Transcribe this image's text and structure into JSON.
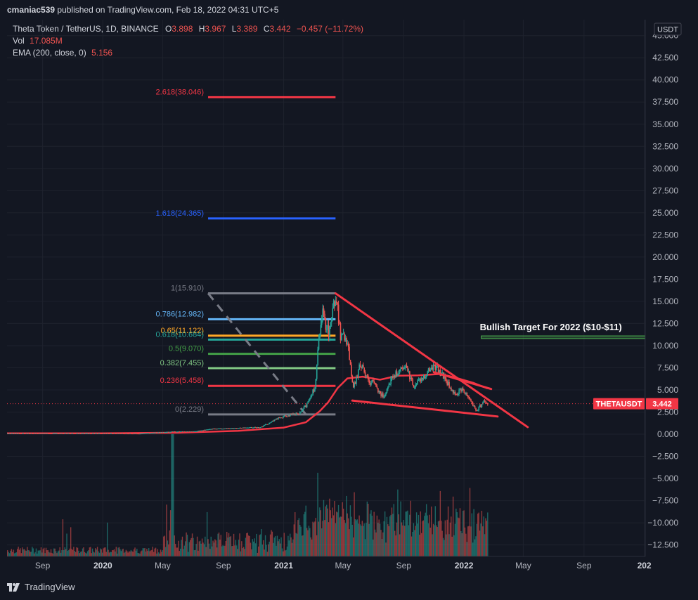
{
  "header": {
    "publisher": "cmaniac539",
    "text": "published on TradingView.com, Feb 18, 2022 04:31 UTC+5"
  },
  "legend": {
    "symbol": "Theta Token / TetherUS, 1D, BINANCE",
    "ohlc": {
      "o_label": "O",
      "o": "3.898",
      "h_label": "H",
      "h": "3.967",
      "l_label": "L",
      "l": "3.389",
      "c_label": "C",
      "c": "3.442",
      "change": "−0.457 (−11.72%)"
    },
    "vol_label": "Vol",
    "vol_value": "17.085M",
    "ema_label": "EMA (200, close, 0)",
    "ema_value": "5.156"
  },
  "colors": {
    "background": "#131722",
    "text": "#d1d4dc",
    "axis_text": "#b2b5be",
    "grid": "#1e222d",
    "up": "#26a69a",
    "down": "#ef5350",
    "trendline": "#f23645",
    "ema": "#f23645",
    "target_box": "#4caf50",
    "price_badge": "#f23645"
  },
  "footer": {
    "brand": "TradingView",
    "logo_icon": "tradingview-logo-icon"
  },
  "chart_data": {
    "type": "candlestick",
    "currency": "USDT",
    "y_ticks": [
      "45.000",
      "42.500",
      "40.000",
      "37.500",
      "35.000",
      "32.500",
      "30.000",
      "27.500",
      "25.000",
      "22.500",
      "20.000",
      "17.500",
      "15.000",
      "12.500",
      "10.000",
      "7.500",
      "5.000",
      "2.500",
      "0.000",
      "−2.500",
      "−5.000",
      "−7.500",
      "−10.000",
      "−12.500"
    ],
    "y_tick_values": [
      45,
      42.5,
      40,
      37.5,
      35,
      32.5,
      30,
      27.5,
      25,
      22.5,
      20,
      17.5,
      15,
      12.5,
      10,
      7.5,
      5,
      2.5,
      0,
      -2.5,
      -5,
      -7.5,
      -10,
      -12.5
    ],
    "ylim": [
      -13.8,
      46.8
    ],
    "x_ticks": [
      {
        "label": "Sep",
        "date": "2019-09-01"
      },
      {
        "label": "2020",
        "date": "2020-01-01"
      },
      {
        "label": "May",
        "date": "2020-05-01"
      },
      {
        "label": "Sep",
        "date": "2020-09-01"
      },
      {
        "label": "2021",
        "date": "2021-01-01"
      },
      {
        "label": "May",
        "date": "2021-05-01"
      },
      {
        "label": "Sep",
        "date": "2021-09-01"
      },
      {
        "label": "2022",
        "date": "2022-01-01"
      },
      {
        "label": "May",
        "date": "2022-05-01"
      },
      {
        "label": "Sep",
        "date": "2022-09-01"
      },
      {
        "label": "202",
        "date": "2023-01-01"
      }
    ],
    "xlim": [
      "2019-06-21",
      "2023-01-03"
    ],
    "price_series": [
      {
        "date": "2019-06-21",
        "close": 0.1
      },
      {
        "date": "2019-09-01",
        "close": 0.1
      },
      {
        "date": "2020-01-01",
        "close": 0.09
      },
      {
        "date": "2020-03-15",
        "close": 0.07
      },
      {
        "date": "2020-05-20",
        "close": 0.3
      },
      {
        "date": "2020-07-01",
        "close": 0.3
      },
      {
        "date": "2020-08-10",
        "close": 0.6
      },
      {
        "date": "2020-10-01",
        "close": 0.7
      },
      {
        "date": "2020-11-15",
        "close": 0.8
      },
      {
        "date": "2020-12-20",
        "close": 1.8
      },
      {
        "date": "2021-01-15",
        "close": 2.2
      },
      {
        "date": "2021-02-01",
        "close": 2.3
      },
      {
        "date": "2021-02-15",
        "close": 3.3
      },
      {
        "date": "2021-03-05",
        "close": 5.5
      },
      {
        "date": "2021-03-12",
        "close": 10.5
      },
      {
        "date": "2021-03-20",
        "close": 13.5
      },
      {
        "date": "2021-04-01",
        "close": 11.5
      },
      {
        "date": "2021-04-16",
        "close": 15.9
      },
      {
        "date": "2021-04-25",
        "close": 11.0
      },
      {
        "date": "2021-05-10",
        "close": 10.5
      },
      {
        "date": "2021-05-20",
        "close": 5.0
      },
      {
        "date": "2021-06-05",
        "close": 8.0
      },
      {
        "date": "2021-06-20",
        "close": 6.0
      },
      {
        "date": "2021-07-01",
        "close": 5.8
      },
      {
        "date": "2021-07-20",
        "close": 4.2
      },
      {
        "date": "2021-08-05",
        "close": 6.2
      },
      {
        "date": "2021-08-20",
        "close": 7.0
      },
      {
        "date": "2021-09-05",
        "close": 7.5
      },
      {
        "date": "2021-09-20",
        "close": 5.5
      },
      {
        "date": "2021-10-10",
        "close": 6.5
      },
      {
        "date": "2021-11-01",
        "close": 7.8
      },
      {
        "date": "2021-11-20",
        "close": 6.5
      },
      {
        "date": "2021-12-10",
        "close": 4.5
      },
      {
        "date": "2021-12-28",
        "close": 5.0
      },
      {
        "date": "2022-01-10",
        "close": 4.2
      },
      {
        "date": "2022-01-25",
        "close": 2.6
      },
      {
        "date": "2022-02-10",
        "close": 3.8
      },
      {
        "date": "2022-02-18",
        "close": 3.44
      }
    ],
    "last_price": "3.442",
    "last_price_value": 3.442,
    "symbol_badge": "THETAUSDT",
    "ema_series": [
      {
        "date": "2019-06-21",
        "value": 0.1
      },
      {
        "date": "2020-01-01",
        "value": 0.1
      },
      {
        "date": "2020-06-01",
        "value": 0.17
      },
      {
        "date": "2020-10-01",
        "value": 0.38
      },
      {
        "date": "2021-01-01",
        "value": 0.75
      },
      {
        "date": "2021-02-15",
        "value": 1.35
      },
      {
        "date": "2021-03-15",
        "value": 2.6
      },
      {
        "date": "2021-04-01",
        "value": 3.6
      },
      {
        "date": "2021-04-20",
        "value": 5.2
      },
      {
        "date": "2021-05-10",
        "value": 6.3
      },
      {
        "date": "2021-06-10",
        "value": 6.5
      },
      {
        "date": "2021-07-15",
        "value": 6.15
      },
      {
        "date": "2021-08-20",
        "value": 6.6
      },
      {
        "date": "2021-10-01",
        "value": 6.65
      },
      {
        "date": "2021-11-15",
        "value": 6.8
      },
      {
        "date": "2021-12-20",
        "value": 6.3
      },
      {
        "date": "2022-01-20",
        "value": 5.8
      },
      {
        "date": "2022-02-18",
        "value": 5.156
      }
    ],
    "fibonacci": {
      "start": "2020-08-01",
      "end": "2021-04-16",
      "levels": [
        {
          "label": "2.618(38.046)",
          "value": 38.046,
          "color": "#f23645"
        },
        {
          "label": "1.618(24.365)",
          "value": 24.365,
          "color": "#2962ff"
        },
        {
          "label": "1(15.910)",
          "value": 15.91,
          "color": "#787b86"
        },
        {
          "label": "0.786(12.982)",
          "value": 12.982,
          "color": "#64b5f6"
        },
        {
          "label": "0.65(11.122)",
          "value": 11.122,
          "color": "#ffa726"
        },
        {
          "label": "0.618(10.684)",
          "value": 10.684,
          "color": "#26a69a"
        },
        {
          "label": "0.5(9.070)",
          "value": 9.07,
          "color": "#43a047"
        },
        {
          "label": "0.382(7.455)",
          "value": 7.455,
          "color": "#81c784"
        },
        {
          "label": "0.236(5.458)",
          "value": 5.458,
          "color": "#f23645"
        },
        {
          "label": "0(2.229)",
          "value": 2.229,
          "color": "#787b86"
        }
      ],
      "diagonal": {
        "from": [
          "2020-08-01",
          15.91
        ],
        "to": [
          "2021-02-15",
          2.229
        ]
      }
    },
    "trendlines": [
      {
        "from": [
          "2021-04-16",
          15.9
        ],
        "to": [
          "2022-05-10",
          0.8
        ]
      },
      {
        "from": [
          "2021-05-20",
          3.8
        ],
        "to": [
          "2022-03-10",
          2.0
        ]
      },
      {
        "from": [
          "2021-11-01",
          7.0
        ],
        "to": [
          "2022-02-25",
          5.1
        ]
      }
    ],
    "annotation": {
      "text": "Bullish Target For 2022 ($10-$11)",
      "from_date": "2022-02-05",
      "to_date": "2023-01-03",
      "low": 10.8,
      "high": 11.1
    },
    "volume": {
      "max_bar_fraction_of_max": 1.0,
      "spike_date": "2020-05-20"
    }
  }
}
